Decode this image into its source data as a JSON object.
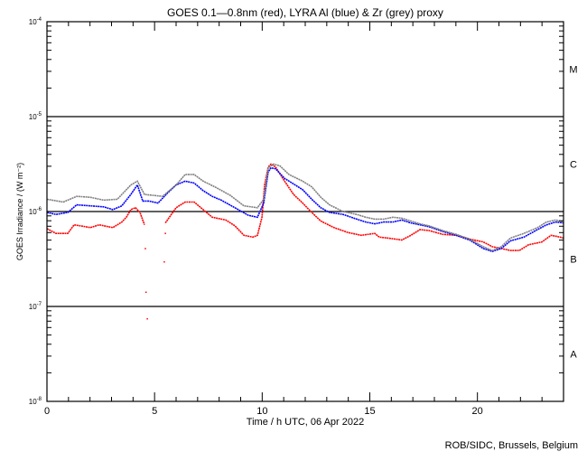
{
  "chart_data": {
    "type": "line",
    "title": "GOES 0.1—0.8nm (red), LYRA Al (blue) & Zr (grey) proxy",
    "xlabel": "Time / h UTC, 06 Apr 2022",
    "ylabel": "GOES Irradiance / (W m⁻²)",
    "xlim": [
      0,
      24
    ],
    "x_ticks": [
      0,
      5,
      10,
      15,
      20
    ],
    "x_tick_labels": [
      "0",
      "5",
      "10",
      "15",
      "20"
    ],
    "yscale": "log",
    "ylim_log10": [
      -8,
      -4
    ],
    "y_ticks_log10": [
      -4,
      -5,
      -6,
      -7,
      -8
    ],
    "y_tick_base": "10",
    "y_tick_exponents": [
      "-4",
      "-5",
      "-6",
      "-7",
      "-8"
    ],
    "flare_classes": [
      {
        "label": "M",
        "lower_log10": -5
      },
      {
        "label": "C",
        "lower_log10": -6
      },
      {
        "label": "B",
        "lower_log10": -7
      },
      {
        "label": "A",
        "lower_log10": -8
      }
    ],
    "reference_lines_log10": [
      -5,
      -6,
      -7
    ],
    "credit": "ROB/SIDC, Brussels, Belgium",
    "series": [
      {
        "name": "GOES 0.1-0.8nm",
        "color": "#ff0000",
        "points_log10": [
          [
            0,
            -6.18
          ],
          [
            0.42,
            -6.23
          ],
          [
            0.97,
            -6.23
          ],
          [
            1.26,
            -6.14
          ],
          [
            1.8,
            -6.16
          ],
          [
            2.01,
            -6.17
          ],
          [
            2.43,
            -6.14
          ],
          [
            3.06,
            -6.17
          ],
          [
            3.48,
            -6.11
          ],
          [
            3.69,
            -6.06
          ],
          [
            3.9,
            -5.98
          ],
          [
            4.11,
            -5.96
          ],
          [
            4.32,
            -6.01
          ],
          [
            4.53,
            -6.14
          ],
          null,
          [
            5.5,
            -6.12
          ],
          [
            6.0,
            -5.96
          ],
          [
            6.42,
            -5.9
          ],
          [
            6.84,
            -5.9
          ],
          [
            7.26,
            -5.98
          ],
          [
            7.68,
            -6.06
          ],
          [
            8.31,
            -6.09
          ],
          [
            8.73,
            -6.15
          ],
          [
            9.15,
            -6.25
          ],
          [
            9.57,
            -6.27
          ],
          [
            9.78,
            -6.25
          ],
          [
            9.99,
            -6.06
          ],
          [
            10.11,
            -5.72
          ],
          [
            10.28,
            -5.53
          ],
          [
            10.41,
            -5.5
          ],
          [
            10.62,
            -5.53
          ],
          [
            11.04,
            -5.68
          ],
          [
            11.46,
            -5.82
          ],
          [
            11.88,
            -5.91
          ],
          [
            12.3,
            -6.01
          ],
          [
            12.72,
            -6.1
          ],
          [
            13.34,
            -6.17
          ],
          [
            13.97,
            -6.22
          ],
          [
            14.6,
            -6.25
          ],
          [
            15.23,
            -6.23
          ],
          [
            15.44,
            -6.27
          ],
          [
            15.86,
            -6.28
          ],
          [
            16.49,
            -6.3
          ],
          [
            16.91,
            -6.25
          ],
          [
            17.33,
            -6.19
          ],
          [
            17.75,
            -6.2
          ],
          [
            18.38,
            -6.24
          ],
          [
            19.01,
            -6.25
          ],
          [
            19.64,
            -6.29
          ],
          [
            20.27,
            -6.32
          ],
          [
            20.69,
            -6.37
          ],
          [
            21.11,
            -6.39
          ],
          [
            21.53,
            -6.41
          ],
          [
            21.95,
            -6.41
          ],
          [
            22.37,
            -6.35
          ],
          [
            23.0,
            -6.32
          ],
          [
            23.42,
            -6.25
          ],
          [
            23.84,
            -6.27
          ],
          [
            24,
            -6.28
          ]
        ],
        "isolated_points_log10": [
          [
            4.57,
            -6.39
          ],
          [
            4.6,
            -6.85
          ],
          [
            4.66,
            -7.13
          ],
          [
            5.45,
            -6.53
          ],
          [
            5.5,
            -6.23
          ]
        ]
      },
      {
        "name": "LYRA Al proxy",
        "color": "#0000ff",
        "points_log10": [
          [
            0,
            -6.01
          ],
          [
            0.42,
            -6.03
          ],
          [
            0.97,
            -6.01
          ],
          [
            1.38,
            -5.93
          ],
          [
            2.01,
            -5.94
          ],
          [
            2.64,
            -5.95
          ],
          [
            3.06,
            -5.98
          ],
          [
            3.48,
            -5.94
          ],
          [
            3.9,
            -5.82
          ],
          [
            4.2,
            -5.72
          ],
          [
            4.45,
            -5.89
          ],
          [
            4.74,
            -5.89
          ],
          [
            5.16,
            -5.91
          ],
          [
            5.58,
            -5.81
          ],
          [
            6.0,
            -5.72
          ],
          [
            6.42,
            -5.68
          ],
          [
            6.84,
            -5.7
          ],
          [
            7.26,
            -5.78
          ],
          [
            7.68,
            -5.84
          ],
          [
            8.1,
            -5.88
          ],
          [
            8.73,
            -5.96
          ],
          [
            9.36,
            -6.04
          ],
          [
            9.78,
            -6.06
          ],
          [
            10.07,
            -5.91
          ],
          [
            10.28,
            -5.58
          ],
          [
            10.41,
            -5.54
          ],
          [
            10.62,
            -5.55
          ],
          [
            11.04,
            -5.65
          ],
          [
            11.46,
            -5.71
          ],
          [
            11.88,
            -5.77
          ],
          [
            12.3,
            -5.87
          ],
          [
            12.72,
            -5.96
          ],
          [
            13.13,
            -6.01
          ],
          [
            13.76,
            -6.03
          ],
          [
            14.39,
            -6.08
          ],
          [
            14.81,
            -6.11
          ],
          [
            15.23,
            -6.13
          ],
          [
            15.65,
            -6.11
          ],
          [
            16.07,
            -6.11
          ],
          [
            16.49,
            -6.09
          ],
          [
            16.91,
            -6.12
          ],
          [
            17.33,
            -6.14
          ],
          [
            17.75,
            -6.16
          ],
          [
            18.38,
            -6.21
          ],
          [
            19.01,
            -6.25
          ],
          [
            19.64,
            -6.3
          ],
          [
            20.27,
            -6.39
          ],
          [
            20.69,
            -6.42
          ],
          [
            21.11,
            -6.39
          ],
          [
            21.53,
            -6.31
          ],
          [
            22.16,
            -6.27
          ],
          [
            22.79,
            -6.19
          ],
          [
            23.21,
            -6.14
          ],
          [
            23.63,
            -6.11
          ],
          [
            24,
            -6.12
          ]
        ]
      },
      {
        "name": "LYRA Zr proxy",
        "color": "#808080",
        "points_log10": [
          [
            0,
            -5.87
          ],
          [
            0.76,
            -5.9
          ],
          [
            1.38,
            -5.84
          ],
          [
            2.01,
            -5.85
          ],
          [
            2.64,
            -5.88
          ],
          [
            3.27,
            -5.87
          ],
          [
            3.9,
            -5.72
          ],
          [
            4.2,
            -5.68
          ],
          [
            4.53,
            -5.82
          ],
          [
            5.37,
            -5.84
          ],
          [
            6.0,
            -5.72
          ],
          [
            6.42,
            -5.61
          ],
          [
            6.84,
            -5.61
          ],
          [
            7.26,
            -5.68
          ],
          [
            7.89,
            -5.75
          ],
          [
            8.52,
            -5.83
          ],
          [
            9.15,
            -5.94
          ],
          [
            9.78,
            -5.96
          ],
          [
            10.07,
            -5.87
          ],
          [
            10.28,
            -5.54
          ],
          [
            10.53,
            -5.5
          ],
          [
            10.83,
            -5.52
          ],
          [
            11.25,
            -5.61
          ],
          [
            11.88,
            -5.68
          ],
          [
            12.3,
            -5.74
          ],
          [
            12.72,
            -5.85
          ],
          [
            13.13,
            -5.93
          ],
          [
            13.76,
            -6.0
          ],
          [
            14.39,
            -6.03
          ],
          [
            14.81,
            -6.06
          ],
          [
            15.23,
            -6.08
          ],
          [
            15.65,
            -6.08
          ],
          [
            16.07,
            -6.06
          ],
          [
            16.49,
            -6.07
          ],
          [
            16.91,
            -6.1
          ],
          [
            17.33,
            -6.13
          ],
          [
            17.75,
            -6.15
          ],
          [
            18.38,
            -6.2
          ],
          [
            19.01,
            -6.24
          ],
          [
            19.64,
            -6.29
          ],
          [
            20.27,
            -6.37
          ],
          [
            20.69,
            -6.41
          ],
          [
            21.11,
            -6.37
          ],
          [
            21.53,
            -6.28
          ],
          [
            22.16,
            -6.23
          ],
          [
            22.79,
            -6.17
          ],
          [
            23.21,
            -6.11
          ],
          [
            23.63,
            -6.09
          ],
          [
            24,
            -6.11
          ]
        ]
      }
    ]
  }
}
